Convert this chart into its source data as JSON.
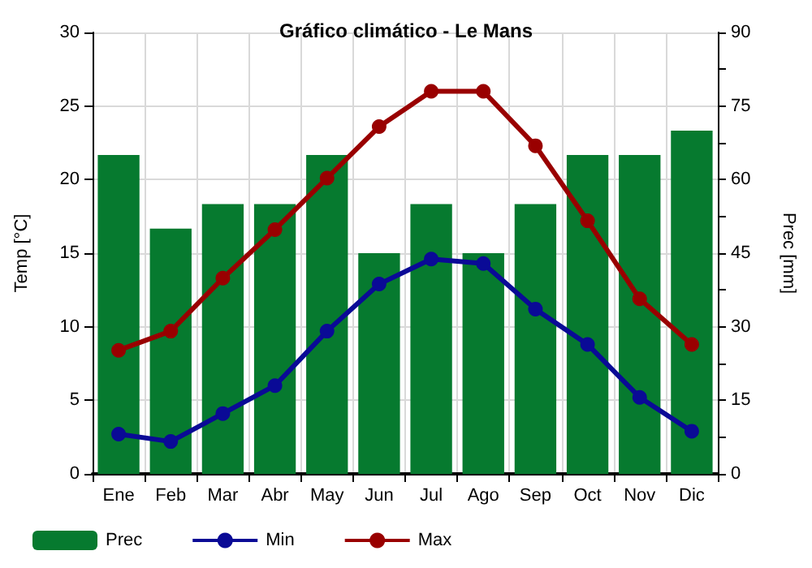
{
  "chart_data": {
    "type": "bar",
    "title": "Gráfico climático - Le Mans",
    "ylabel": "Temp [°C]",
    "y2label": "Prec [mm]",
    "categories": [
      "Ene",
      "Feb",
      "Mar",
      "Abr",
      "May",
      "Jun",
      "Jul",
      "Ago",
      "Sep",
      "Oct",
      "Nov",
      "Dic"
    ],
    "series": [
      {
        "name": "Prec",
        "axis": "y2",
        "color": "#067a2f",
        "values": [
          65,
          50,
          55,
          55,
          65,
          45,
          55,
          45,
          55,
          65,
          65,
          70
        ]
      },
      {
        "name": "Min",
        "type": "line",
        "color": "#0a0a96",
        "values": [
          2.7,
          2.2,
          4.1,
          6.0,
          9.7,
          12.9,
          14.6,
          14.3,
          11.2,
          8.8,
          5.2,
          2.9
        ]
      },
      {
        "name": "Max",
        "type": "line",
        "color": "#990000",
        "values": [
          8.4,
          9.7,
          13.3,
          16.6,
          20.1,
          23.6,
          26.0,
          26.0,
          22.3,
          17.2,
          11.9,
          8.8
        ]
      }
    ],
    "ylim": [
      0,
      30
    ],
    "yticks": [
      0,
      5,
      10,
      15,
      20,
      25,
      30
    ],
    "y2lim": [
      0,
      90
    ],
    "y2ticks": [
      0,
      {
        "value": 7.5,
        "label": null
      },
      15,
      {
        "value": 22.5,
        "label": null
      },
      30,
      {
        "value": 37.5,
        "label": null
      },
      45,
      {
        "value": 52.5,
        "label": null
      },
      60,
      {
        "value": 67.5,
        "label": null
      },
      75,
      {
        "value": 82.5,
        "label": null
      },
      90
    ],
    "grid": true,
    "legend": "bottom left",
    "marker": "circle",
    "line_style": "solid"
  }
}
